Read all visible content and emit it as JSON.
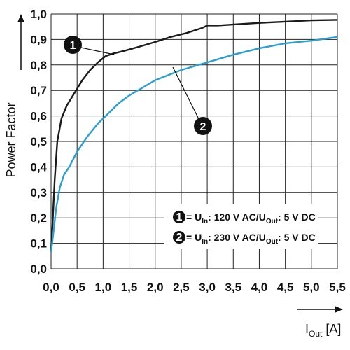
{
  "chart_data": {
    "type": "line",
    "title": "",
    "ylabel": "Power Factor",
    "xlabel_main": "I",
    "xlabel_sub": "Out",
    "xlabel_unit": " [A]",
    "xlim": [
      0,
      5.5
    ],
    "ylim": [
      0,
      1.0
    ],
    "grid": true,
    "x_ticks": [
      "0,0",
      "0,5",
      "1,0",
      "1,5",
      "2,0",
      "2,5",
      "3,0",
      "3,5",
      "4,0",
      "4,5",
      "5,0",
      "5,5"
    ],
    "y_ticks": [
      "0,0",
      "0,1",
      "0,2",
      "0,3",
      "0,4",
      "0,5",
      "0,6",
      "0,7",
      "0,8",
      "0,9",
      "1,0"
    ],
    "colors": {
      "series1": "#1a1a1a",
      "series2": "#2a9fd0",
      "grid": "#222222"
    },
    "series": [
      {
        "marker": "1",
        "legend": {
          "pre": " = U",
          "s1": "In",
          "mid": ": 120 V AC/U",
          "s2": "Out",
          "post": ": 5 V DC"
        },
        "points": [
          [
            0.0,
            0.07
          ],
          [
            0.03,
            0.18
          ],
          [
            0.07,
            0.35
          ],
          [
            0.12,
            0.5
          ],
          [
            0.2,
            0.59
          ],
          [
            0.3,
            0.64
          ],
          [
            0.45,
            0.69
          ],
          [
            0.6,
            0.74
          ],
          [
            0.75,
            0.78
          ],
          [
            0.9,
            0.81
          ],
          [
            1.05,
            0.835
          ],
          [
            1.2,
            0.845
          ],
          [
            1.4,
            0.855
          ],
          [
            1.7,
            0.872
          ],
          [
            2.0,
            0.89
          ],
          [
            2.3,
            0.91
          ],
          [
            2.6,
            0.925
          ],
          [
            2.9,
            0.945
          ],
          [
            3.0,
            0.955
          ],
          [
            3.2,
            0.955
          ],
          [
            3.6,
            0.96
          ],
          [
            4.0,
            0.965
          ],
          [
            4.5,
            0.97
          ],
          [
            5.0,
            0.975
          ],
          [
            5.5,
            0.977
          ]
        ]
      },
      {
        "marker": "2",
        "legend": {
          "pre": " = U",
          "s1": "In",
          "mid": ": 230 V AC/U",
          "s2": "Out",
          "post": ": 5 V DC"
        },
        "points": [
          [
            0.0,
            0.065
          ],
          [
            0.05,
            0.15
          ],
          [
            0.1,
            0.24
          ],
          [
            0.17,
            0.32
          ],
          [
            0.25,
            0.37
          ],
          [
            0.35,
            0.4
          ],
          [
            0.5,
            0.46
          ],
          [
            0.7,
            0.52
          ],
          [
            0.9,
            0.57
          ],
          [
            1.1,
            0.61
          ],
          [
            1.3,
            0.65
          ],
          [
            1.5,
            0.68
          ],
          [
            1.75,
            0.71
          ],
          [
            2.0,
            0.74
          ],
          [
            2.25,
            0.76
          ],
          [
            2.5,
            0.78
          ],
          [
            2.75,
            0.795
          ],
          [
            3.0,
            0.81
          ],
          [
            3.5,
            0.84
          ],
          [
            4.0,
            0.865
          ],
          [
            4.5,
            0.885
          ],
          [
            5.0,
            0.895
          ],
          [
            5.5,
            0.91
          ]
        ]
      }
    ]
  }
}
